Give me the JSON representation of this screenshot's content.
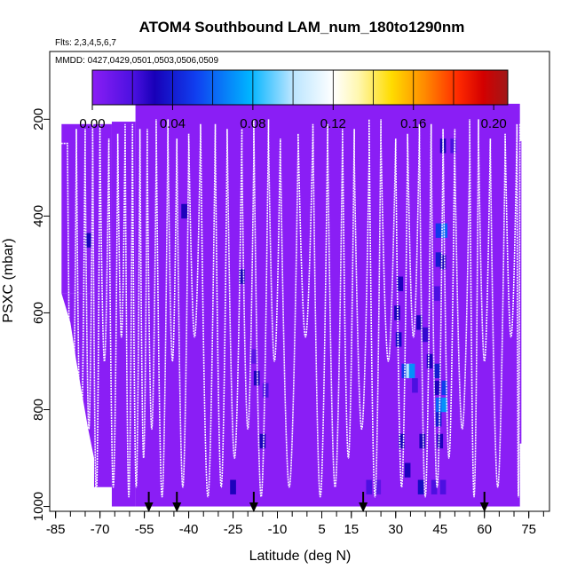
{
  "chart_data": {
    "type": "heatmap",
    "title": "ATOM4 Southbound LAM_num_180to1290nm",
    "subtitle_flights": "Flts: 2,3,4,5,6,7",
    "mmdd": "MMDD: 0427,0429,0501,0503,0506,0509",
    "xlabel": "Latitude (deg N)",
    "ylabel": "PSXC (mbar)",
    "xlim": [
      -87,
      82
    ],
    "ylim": [
      1010,
      60
    ],
    "x_ticks": [
      "-85",
      "-70",
      "-55",
      "-40",
      "-25",
      "-10",
      "5",
      "15",
      "30",
      "45",
      "60",
      "75"
    ],
    "x_tick_values": [
      -85,
      -70,
      -55,
      -40,
      -25,
      -10,
      5,
      15,
      30,
      45,
      60,
      75
    ],
    "y_ticks": [
      "200",
      "400",
      "600",
      "800",
      "1000"
    ],
    "y_tick_values": [
      200,
      400,
      600,
      800,
      1000
    ],
    "colorbar": {
      "range": [
        0,
        0.207
      ],
      "tick_labels": [
        "0.00",
        "0.04",
        "0.08",
        "0.12",
        "0.16",
        "0.20"
      ],
      "tick_values": [
        0,
        0.04,
        0.08,
        0.12,
        0.16,
        0.2
      ]
    },
    "arrow_latitudes": [
      -53.5,
      -44,
      -18,
      19,
      60
    ],
    "background_value": 0.0,
    "high_cells": [
      {
        "lat": -74,
        "p": 450,
        "value": 0.03
      },
      {
        "lat": -41.5,
        "p": 390,
        "value": 0.03
      },
      {
        "lat": -22,
        "p": 525,
        "value": 0.03
      },
      {
        "lat": -17,
        "p": 735,
        "value": 0.03
      },
      {
        "lat": -14,
        "p": 760,
        "value": 0.02
      },
      {
        "lat": -25,
        "p": 960,
        "value": 0.03
      },
      {
        "lat": -18,
        "p": 690,
        "value": 0.015
      },
      {
        "lat": -15,
        "p": 865,
        "value": 0.03
      },
      {
        "lat": 21,
        "p": 960,
        "value": 0.02
      },
      {
        "lat": 24,
        "p": 960,
        "value": 0.015
      },
      {
        "lat": 31.5,
        "p": 540,
        "value": 0.03
      },
      {
        "lat": 30.5,
        "p": 600,
        "value": 0.03
      },
      {
        "lat": 31,
        "p": 655,
        "value": 0.035
      },
      {
        "lat": 33,
        "p": 720,
        "value": 0.05
      },
      {
        "lat": 34.5,
        "p": 720,
        "value": 0.1
      },
      {
        "lat": 35.5,
        "p": 720,
        "value": 0.07
      },
      {
        "lat": 32,
        "p": 865,
        "value": 0.03
      },
      {
        "lat": 34,
        "p": 925,
        "value": 0.03
      },
      {
        "lat": 36.5,
        "p": 750,
        "value": 0.02
      },
      {
        "lat": 38,
        "p": 620,
        "value": 0.03
      },
      {
        "lat": 40,
        "p": 645,
        "value": 0.025
      },
      {
        "lat": 41.5,
        "p": 700,
        "value": 0.03
      },
      {
        "lat": 44,
        "p": 720,
        "value": 0.04
      },
      {
        "lat": 39,
        "p": 865,
        "value": 0.03
      },
      {
        "lat": 38.5,
        "p": 960,
        "value": 0.035
      },
      {
        "lat": 46,
        "p": 255,
        "value": 0.03
      },
      {
        "lat": 49.5,
        "p": 255,
        "value": 0.02
      },
      {
        "lat": 44.5,
        "p": 430,
        "value": 0.05
      },
      {
        "lat": 46.5,
        "p": 430,
        "value": 0.06
      },
      {
        "lat": 44.5,
        "p": 490,
        "value": 0.04
      },
      {
        "lat": 46,
        "p": 495,
        "value": 0.03
      },
      {
        "lat": 44,
        "p": 560,
        "value": 0.02
      },
      {
        "lat": 44,
        "p": 755,
        "value": 0.03
      },
      {
        "lat": 46.5,
        "p": 755,
        "value": 0.05
      },
      {
        "lat": 44.5,
        "p": 790,
        "value": 0.06
      },
      {
        "lat": 46.5,
        "p": 790,
        "value": 0.07
      },
      {
        "lat": 44.5,
        "p": 820,
        "value": 0.04
      },
      {
        "lat": 45,
        "p": 865,
        "value": 0.03
      },
      {
        "lat": 43,
        "p": 960,
        "value": 0.02
      },
      {
        "lat": 46,
        "p": 960,
        "value": 0.02
      }
    ]
  }
}
